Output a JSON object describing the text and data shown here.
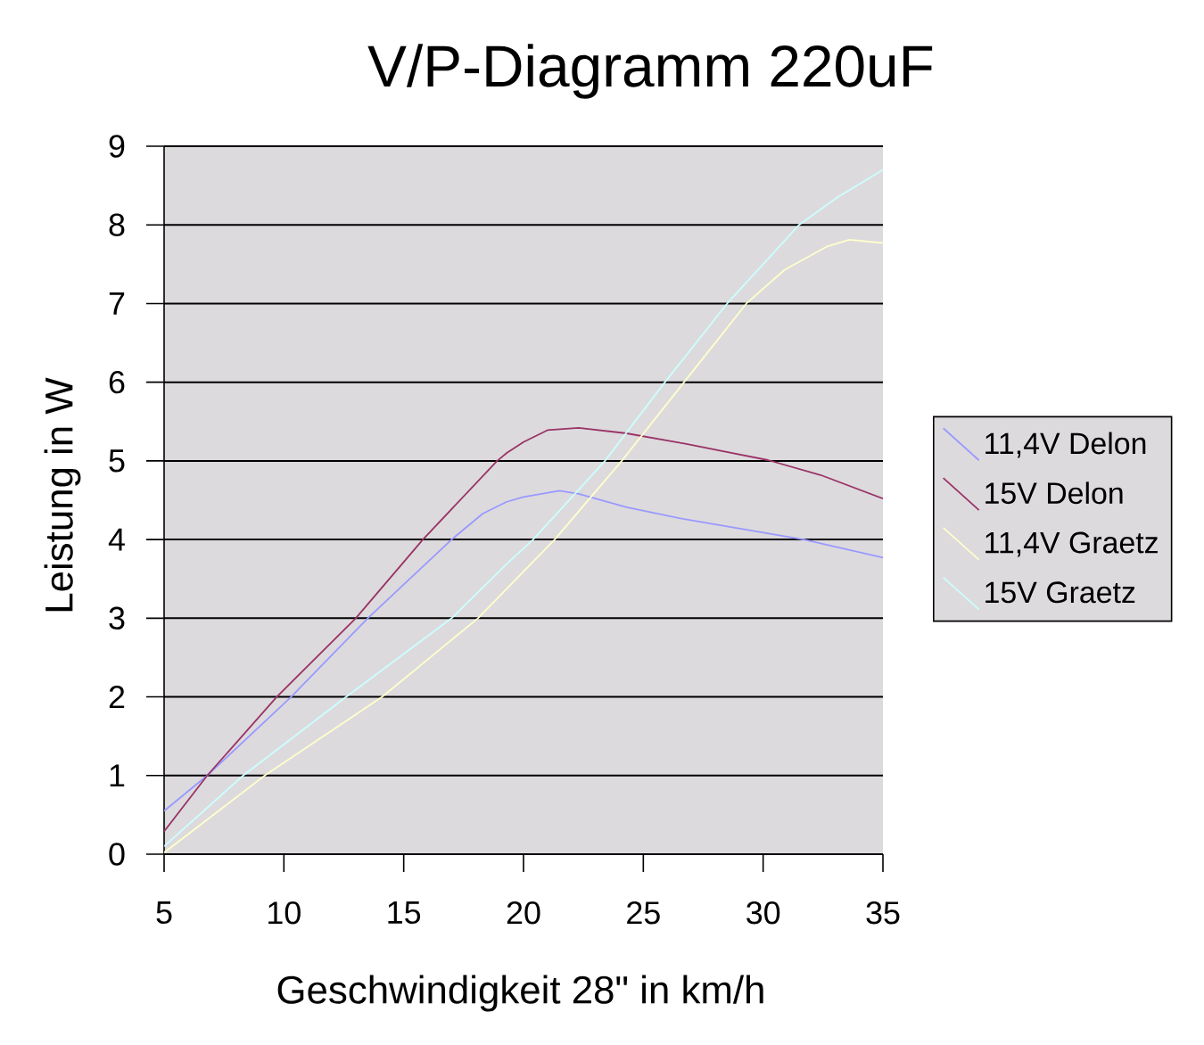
{
  "chart_data": {
    "type": "line",
    "title": "V/P-Diagramm 220uF",
    "xlabel": "Geschwindigkeit 28\" in km/h",
    "ylabel": "Leistung in W",
    "xlim": [
      5,
      35
    ],
    "ylim": [
      0,
      9
    ],
    "xticks": [
      5,
      10,
      15,
      20,
      25,
      30,
      35
    ],
    "yticks": [
      0,
      1,
      2,
      3,
      4,
      5,
      6,
      7,
      8,
      9
    ],
    "grid": "y",
    "legend": "right",
    "series": [
      {
        "name": "11,4V Delon",
        "color": "#9999ff",
        "x": [
          5,
          6.8,
          10.3,
          13.5,
          17.0,
          18.3,
          19.3,
          20.0,
          21.5,
          22.3,
          24.3,
          26.7,
          29.2,
          31.7,
          35
        ],
        "values": [
          0.55,
          1.0,
          2.0,
          3.0,
          4.0,
          4.33,
          4.48,
          4.54,
          4.62,
          4.58,
          4.41,
          4.26,
          4.13,
          4.0,
          3.77
        ]
      },
      {
        "name": "15V Delon",
        "color": "#993366",
        "x": [
          5,
          6.8,
          9.7,
          13.0,
          15.8,
          18.9,
          19.3,
          20.0,
          21.0,
          22.3,
          24.3,
          26.7,
          30.2,
          32.4,
          35
        ],
        "values": [
          0.29,
          1.0,
          2.0,
          3.0,
          4.0,
          5.0,
          5.1,
          5.24,
          5.39,
          5.42,
          5.35,
          5.22,
          5.01,
          4.82,
          4.52
        ]
      },
      {
        "name": "11,4V Graetz",
        "color": "#ffffcc",
        "x": [
          5,
          9.2,
          14.1,
          18.1,
          21.3,
          24.1,
          26.7,
          29.3,
          30.9,
          32.7,
          33.6,
          35
        ],
        "values": [
          0.02,
          1.0,
          2.0,
          3.0,
          4.0,
          5.0,
          6.0,
          7.0,
          7.43,
          7.73,
          7.81,
          7.77
        ]
      },
      {
        "name": "15V Graetz",
        "color": "#ccffff",
        "x": [
          5,
          8.3,
          12.6,
          17.0,
          19.3,
          20.4,
          23.4,
          25.9,
          28.5,
          31.5,
          33.1,
          35
        ],
        "values": [
          0.1,
          1.0,
          2.0,
          3.0,
          3.69,
          4.0,
          5.0,
          6.0,
          7.0,
          8.0,
          8.35,
          8.7
        ]
      }
    ]
  }
}
